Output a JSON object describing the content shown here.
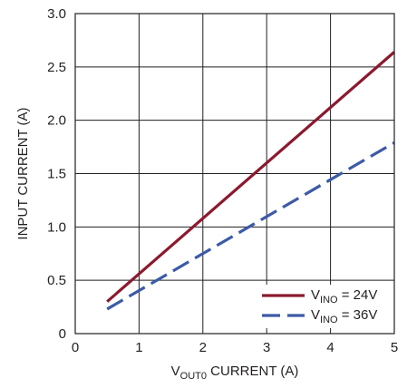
{
  "chart_data": {
    "type": "line",
    "title": "",
    "xlabel": {
      "main": "V",
      "sub": "OUT0",
      "rest": " CURRENT (A)"
    },
    "ylabel": "INPUT CURRENT (A)",
    "xlim": [
      0,
      5
    ],
    "ylim": [
      0,
      3.0
    ],
    "xticks": [
      0,
      1,
      2,
      3,
      4,
      5
    ],
    "xtick_labels": [
      "0",
      "1",
      "2",
      "3",
      "4",
      "5"
    ],
    "yticks": [
      0,
      0.5,
      1.0,
      1.5,
      2.0,
      2.5,
      3.0
    ],
    "ytick_labels": [
      "0",
      "0.5",
      "1.0",
      "1.5",
      "2.0",
      "2.5",
      "3.0"
    ],
    "grid": true,
    "legend_position": "bottom-right",
    "series": [
      {
        "legend": {
          "main": "V",
          "sub": "INO",
          "rest": " = 24V"
        },
        "color": "#8b1a2e",
        "style": "solid",
        "x": [
          0.5,
          5.0
        ],
        "y": [
          0.3,
          2.64
        ]
      },
      {
        "legend": {
          "main": "V",
          "sub": "INO",
          "rest": " = 36V"
        },
        "color": "#3c5aa6",
        "style": "dashed",
        "x": [
          0.5,
          5.0
        ],
        "y": [
          0.23,
          1.79
        ]
      }
    ]
  }
}
